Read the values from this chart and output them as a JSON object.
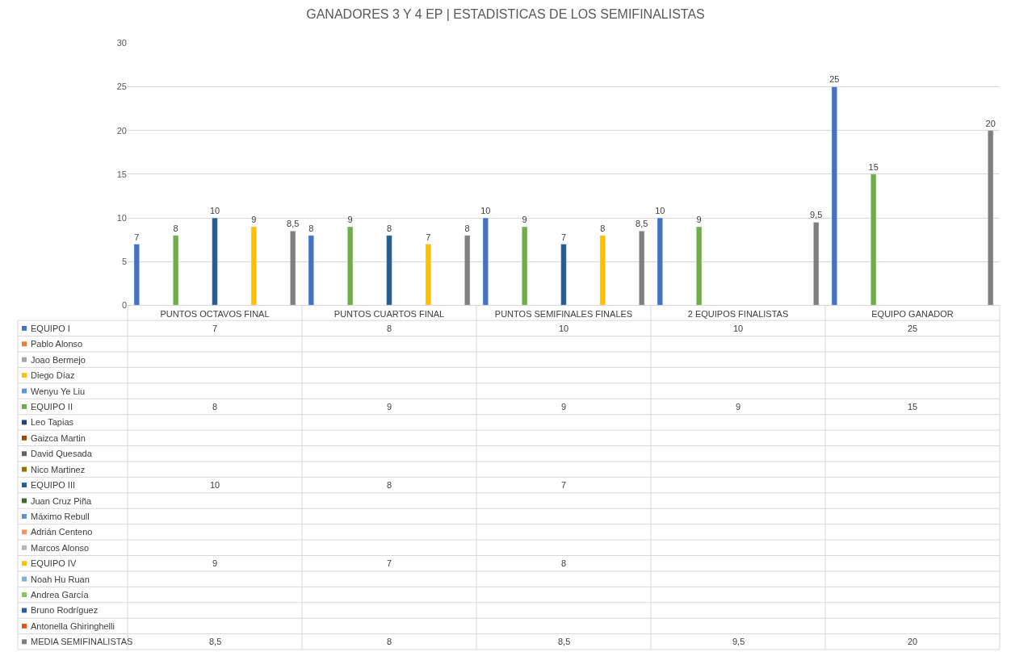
{
  "chart_data": {
    "type": "bar",
    "title": "GANADORES 3 Y 4 EP | ESTADISTICAS DE LOS SEMIFINALISTAS",
    "categories": [
      "PUNTOS OCTAVOS FINAL",
      "PUNTOS CUARTOS FINAL",
      "PUNTOS SEMIFINALES FINALES",
      "2 EQUIPOS FINALISTAS",
      "EQUIPO GANADOR"
    ],
    "legend": "bottom left",
    "ylim": [
      0,
      30
    ],
    "yticks": [
      0,
      5,
      10,
      15,
      20,
      25,
      30
    ],
    "grid": "y",
    "series": [
      {
        "name": "EQUIPO I",
        "color": "#4472c4",
        "values": [
          7,
          8,
          10,
          10,
          25
        ],
        "value_labels": [
          "7",
          "8",
          "10",
          "10",
          "25"
        ]
      },
      {
        "name": "Pablo Alonso",
        "color": "#ed7d31",
        "values": [
          null,
          null,
          null,
          null,
          null
        ]
      },
      {
        "name": "Joao Bermejo",
        "color": "#a5a5a5",
        "values": [
          null,
          null,
          null,
          null,
          null
        ]
      },
      {
        "name": "Diego Díaz",
        "color": "#ffc000",
        "values": [
          null,
          null,
          null,
          null,
          null
        ]
      },
      {
        "name": "Wenyu Ye Liu",
        "color": "#5b9bd5",
        "values": [
          null,
          null,
          null,
          null,
          null
        ]
      },
      {
        "name": "EQUIPO II",
        "color": "#70ad47",
        "values": [
          8,
          9,
          9,
          9,
          15
        ],
        "value_labels": [
          "8",
          "9",
          "9",
          "9",
          "15"
        ]
      },
      {
        "name": "Leo Tapias",
        "color": "#264478",
        "values": [
          null,
          null,
          null,
          null,
          null
        ]
      },
      {
        "name": "Gaizca Martin",
        "color": "#9e480e",
        "values": [
          null,
          null,
          null,
          null,
          null
        ]
      },
      {
        "name": "David Quesada",
        "color": "#636363",
        "values": [
          null,
          null,
          null,
          null,
          null
        ]
      },
      {
        "name": "Nico Martinez",
        "color": "#997300",
        "values": [
          null,
          null,
          null,
          null,
          null
        ]
      },
      {
        "name": "EQUIPO III",
        "color": "#255e91",
        "values": [
          10,
          8,
          7,
          null,
          null
        ],
        "value_labels": [
          "10",
          "8",
          "7",
          null,
          null
        ]
      },
      {
        "name": "Juan Cruz Piña",
        "color": "#43682b",
        "values": [
          null,
          null,
          null,
          null,
          null
        ]
      },
      {
        "name": "Máximo Rebull",
        "color": "#698ed0",
        "values": [
          null,
          null,
          null,
          null,
          null
        ]
      },
      {
        "name": "Adrián Centeno",
        "color": "#f1975a",
        "values": [
          null,
          null,
          null,
          null,
          null
        ]
      },
      {
        "name": "Marcos Alonso",
        "color": "#b7b7b7",
        "values": [
          null,
          null,
          null,
          null,
          null
        ]
      },
      {
        "name": "EQUIPO IV",
        "color": "#ffc000",
        "values": [
          9,
          7,
          8,
          null,
          null
        ],
        "value_labels": [
          "9",
          "7",
          "8",
          null,
          null
        ]
      },
      {
        "name": "Noah Hu Ruan",
        "color": "#7cafdd",
        "values": [
          null,
          null,
          null,
          null,
          null
        ]
      },
      {
        "name": "Andrea García",
        "color": "#8cc168",
        "values": [
          null,
          null,
          null,
          null,
          null
        ]
      },
      {
        "name": "Bruno Rodríguez",
        "color": "#335aa1",
        "values": [
          null,
          null,
          null,
          null,
          null
        ]
      },
      {
        "name": "Antonella Ghiringhelli",
        "color": "#e2571b",
        "values": [
          null,
          null,
          null,
          null,
          null
        ]
      },
      {
        "name": "MEDIA SEMIFINALISTAS",
        "color": "#7f7f7f",
        "values": [
          8.5,
          8,
          8.5,
          9.5,
          20
        ],
        "value_labels": [
          "8,5",
          "8",
          "8,5",
          "9,5",
          "20"
        ]
      }
    ]
  }
}
